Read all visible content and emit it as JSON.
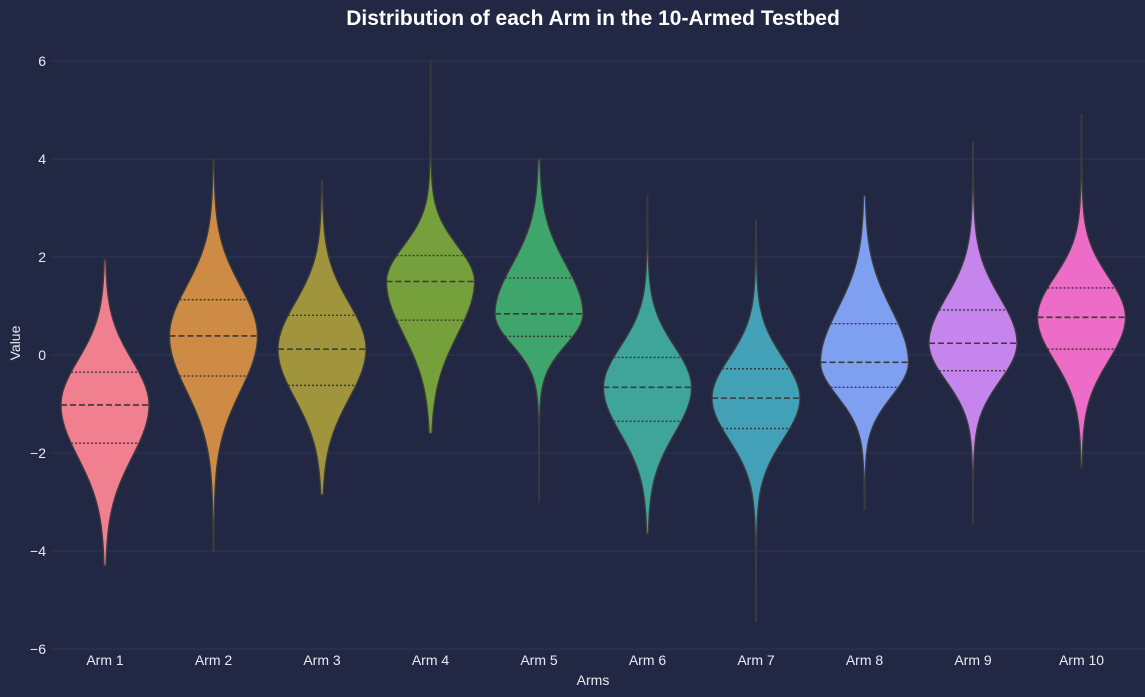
{
  "chart_data": {
    "type": "violin",
    "title": "Distribution of each Arm in the 10-Armed Testbed",
    "xlabel": "Arms",
    "ylabel": "Value",
    "ylim": [
      -6,
      6.5
    ],
    "yticks": [
      6,
      4,
      2,
      0,
      -2,
      -4,
      -6
    ],
    "ytick_labels": [
      "6",
      "4",
      "2",
      "0",
      "−2",
      "−4",
      "−6"
    ],
    "grid": true,
    "inner": "quartile",
    "categories": [
      "Arm 1",
      "Arm 2",
      "Arm 3",
      "Arm 4",
      "Arm 5",
      "Arm 6",
      "Arm 7",
      "Arm 8",
      "Arm 9",
      "Arm 10"
    ],
    "colors": [
      "#f07f90",
      "#ce8b45",
      "#a0943c",
      "#75a03c",
      "#3ea56d",
      "#3fa49a",
      "#43a1b7",
      "#7f9ff0",
      "#c585ec",
      "#ec6cc8"
    ],
    "series": [
      {
        "min": -4.3,
        "max": 1.95,
        "q1": -1.8,
        "median": -1.02,
        "q3": -0.35
      },
      {
        "min": -4.0,
        "max": 4.0,
        "q1": -0.43,
        "median": 0.39,
        "q3": 1.13
      },
      {
        "min": -2.85,
        "max": 3.55,
        "q1": -0.62,
        "median": 0.12,
        "q3": 0.81
      },
      {
        "min": -1.6,
        "max": 6.0,
        "q1": 0.71,
        "median": 1.5,
        "q3": 2.03
      },
      {
        "min": -3.0,
        "max": 4.0,
        "q1": 0.38,
        "median": 0.84,
        "q3": 1.57
      },
      {
        "min": -3.65,
        "max": 3.25,
        "q1": -1.35,
        "median": -0.66,
        "q3": -0.05
      },
      {
        "min": -5.45,
        "max": 2.75,
        "q1": -1.5,
        "median": -0.88,
        "q3": -0.28
      },
      {
        "min": -3.15,
        "max": 3.25,
        "q1": -0.66,
        "median": -0.15,
        "q3": 0.64
      },
      {
        "min": -3.45,
        "max": 4.35,
        "q1": -0.32,
        "median": 0.24,
        "q3": 0.92
      },
      {
        "min": -2.3,
        "max": 4.9,
        "q1": 0.12,
        "median": 0.77,
        "q3": 1.37
      }
    ]
  }
}
